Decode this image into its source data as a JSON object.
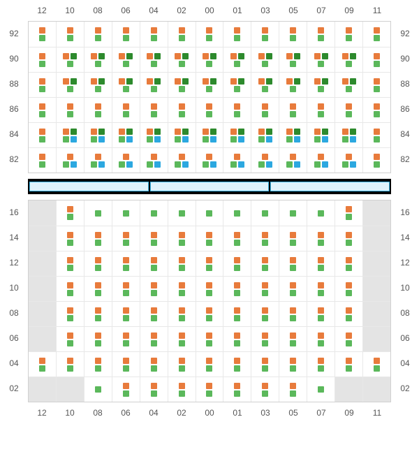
{
  "colors": {
    "orange": "#e87b3c",
    "green": "#5bb85b",
    "dgreen": "#2d8a2d",
    "blue": "#2ca8e0",
    "gray": "#e4e4e4",
    "grid": "#e8e8e8",
    "border": "#d0d0d0",
    "barBorder": "#3bb5e8",
    "barFill": "#dff2fb",
    "barBg": "#000000"
  },
  "columns": [
    "12",
    "10",
    "08",
    "06",
    "04",
    "02",
    "00",
    "01",
    "03",
    "05",
    "07",
    "09",
    "11"
  ],
  "topBlock": {
    "rowLabels": [
      "92",
      "90",
      "88",
      "86",
      "84",
      "82"
    ],
    "rows": [
      [
        [
          "o",
          "g"
        ],
        [
          "o",
          "g"
        ],
        [
          "o",
          "g"
        ],
        [
          "o",
          "g"
        ],
        [
          "o",
          "g"
        ],
        [
          "o",
          "g"
        ],
        [
          "o",
          "g"
        ],
        [
          "o",
          "g"
        ],
        [
          "o",
          "g"
        ],
        [
          "o",
          "g"
        ],
        [
          "o",
          "g"
        ],
        [
          "o",
          "g"
        ],
        [
          "o",
          "g"
        ]
      ],
      [
        [
          "o",
          "g"
        ],
        [
          "od",
          "g"
        ],
        [
          "od",
          "g"
        ],
        [
          "od",
          "g"
        ],
        [
          "od",
          "g"
        ],
        [
          "od",
          "g"
        ],
        [
          "od",
          "g"
        ],
        [
          "od",
          "g"
        ],
        [
          "od",
          "g"
        ],
        [
          "od",
          "g"
        ],
        [
          "od",
          "g"
        ],
        [
          "od",
          "g"
        ],
        [
          "o",
          "g"
        ]
      ],
      [
        [
          "o",
          "g"
        ],
        [
          "od",
          "g"
        ],
        [
          "od",
          "g"
        ],
        [
          "od",
          "g"
        ],
        [
          "od",
          "g"
        ],
        [
          "od",
          "g"
        ],
        [
          "od",
          "g"
        ],
        [
          "od",
          "g"
        ],
        [
          "od",
          "g"
        ],
        [
          "od",
          "g"
        ],
        [
          "od",
          "g"
        ],
        [
          "od",
          "g"
        ],
        [
          "o",
          "g"
        ]
      ],
      [
        [
          "o",
          "g"
        ],
        [
          "o",
          "g"
        ],
        [
          "o",
          "g"
        ],
        [
          "o",
          "g"
        ],
        [
          "o",
          "g"
        ],
        [
          "o",
          "g"
        ],
        [
          "o",
          "g"
        ],
        [
          "o",
          "g"
        ],
        [
          "o",
          "g"
        ],
        [
          "o",
          "g"
        ],
        [
          "o",
          "g"
        ],
        [
          "o",
          "g"
        ],
        [
          "o",
          "g"
        ]
      ],
      [
        [
          "o",
          "g"
        ],
        [
          "od",
          "gb"
        ],
        [
          "od",
          "gb"
        ],
        [
          "od",
          "gb"
        ],
        [
          "od",
          "gb"
        ],
        [
          "od",
          "gb"
        ],
        [
          "od",
          "gb"
        ],
        [
          "od",
          "gb"
        ],
        [
          "od",
          "gb"
        ],
        [
          "od",
          "gb"
        ],
        [
          "od",
          "gb"
        ],
        [
          "od",
          "gb"
        ],
        [
          "o",
          "g"
        ]
      ],
      [
        [
          "o",
          "g"
        ],
        [
          "o",
          "gb"
        ],
        [
          "o",
          "gb"
        ],
        [
          "o",
          "gb"
        ],
        [
          "o",
          "gb"
        ],
        [
          "o",
          "gb"
        ],
        [
          "o",
          "gb"
        ],
        [
          "o",
          "gb"
        ],
        [
          "o",
          "gb"
        ],
        [
          "o",
          "gb"
        ],
        [
          "o",
          "gb"
        ],
        [
          "o",
          "gb"
        ],
        [
          "o",
          "g"
        ]
      ]
    ]
  },
  "barSegments": 3,
  "bottomBlock": {
    "rowLabels": [
      "16",
      "14",
      "12",
      "10",
      "08",
      "06",
      "04",
      "02"
    ],
    "rows": [
      [
        "x",
        [
          "o",
          "g"
        ],
        [
          "g"
        ],
        [
          "g"
        ],
        [
          "g"
        ],
        [
          "g"
        ],
        [
          "g"
        ],
        [
          "g"
        ],
        [
          "g"
        ],
        [
          "g"
        ],
        [
          "g"
        ],
        [
          "o",
          "g"
        ],
        "x"
      ],
      [
        "x",
        [
          "o",
          "g"
        ],
        [
          "o",
          "g"
        ],
        [
          "o",
          "g"
        ],
        [
          "o",
          "g"
        ],
        [
          "o",
          "g"
        ],
        [
          "o",
          "g"
        ],
        [
          "o",
          "g"
        ],
        [
          "o",
          "g"
        ],
        [
          "o",
          "g"
        ],
        [
          "o",
          "g"
        ],
        [
          "o",
          "g"
        ],
        "x"
      ],
      [
        "x",
        [
          "o",
          "g"
        ],
        [
          "o",
          "g"
        ],
        [
          "o",
          "g"
        ],
        [
          "o",
          "g"
        ],
        [
          "o",
          "g"
        ],
        [
          "o",
          "g"
        ],
        [
          "o",
          "g"
        ],
        [
          "o",
          "g"
        ],
        [
          "o",
          "g"
        ],
        [
          "o",
          "g"
        ],
        [
          "o",
          "g"
        ],
        "x"
      ],
      [
        "x",
        [
          "o",
          "g"
        ],
        [
          "o",
          "g"
        ],
        [
          "o",
          "g"
        ],
        [
          "o",
          "g"
        ],
        [
          "o",
          "g"
        ],
        [
          "o",
          "g"
        ],
        [
          "o",
          "g"
        ],
        [
          "o",
          "g"
        ],
        [
          "o",
          "g"
        ],
        [
          "o",
          "g"
        ],
        [
          "o",
          "g"
        ],
        "x"
      ],
      [
        "x",
        [
          "o",
          "g"
        ],
        [
          "o",
          "g"
        ],
        [
          "o",
          "g"
        ],
        [
          "o",
          "g"
        ],
        [
          "o",
          "g"
        ],
        [
          "o",
          "g"
        ],
        [
          "o",
          "g"
        ],
        [
          "o",
          "g"
        ],
        [
          "o",
          "g"
        ],
        [
          "o",
          "g"
        ],
        [
          "o",
          "g"
        ],
        "x"
      ],
      [
        "x",
        [
          "o",
          "g"
        ],
        [
          "o",
          "g"
        ],
        [
          "o",
          "g"
        ],
        [
          "o",
          "g"
        ],
        [
          "o",
          "g"
        ],
        [
          "o",
          "g"
        ],
        [
          "o",
          "g"
        ],
        [
          "o",
          "g"
        ],
        [
          "o",
          "g"
        ],
        [
          "o",
          "g"
        ],
        [
          "o",
          "g"
        ],
        "x"
      ],
      [
        [
          "o",
          "g"
        ],
        [
          "o",
          "g"
        ],
        [
          "o",
          "g"
        ],
        [
          "o",
          "g"
        ],
        [
          "o",
          "g"
        ],
        [
          "o",
          "g"
        ],
        [
          "o",
          "g"
        ],
        [
          "o",
          "g"
        ],
        [
          "o",
          "g"
        ],
        [
          "o",
          "g"
        ],
        [
          "o",
          "g"
        ],
        [
          "o",
          "g"
        ],
        [
          "o",
          "g"
        ]
      ],
      [
        "x",
        "x",
        [
          "g"
        ],
        [
          "o",
          "g"
        ],
        [
          "o",
          "g"
        ],
        [
          "o",
          "g"
        ],
        [
          "o",
          "g"
        ],
        [
          "o",
          "g"
        ],
        [
          "o",
          "g"
        ],
        [
          "o",
          "g"
        ],
        [
          "g"
        ],
        "x",
        "x"
      ]
    ]
  }
}
